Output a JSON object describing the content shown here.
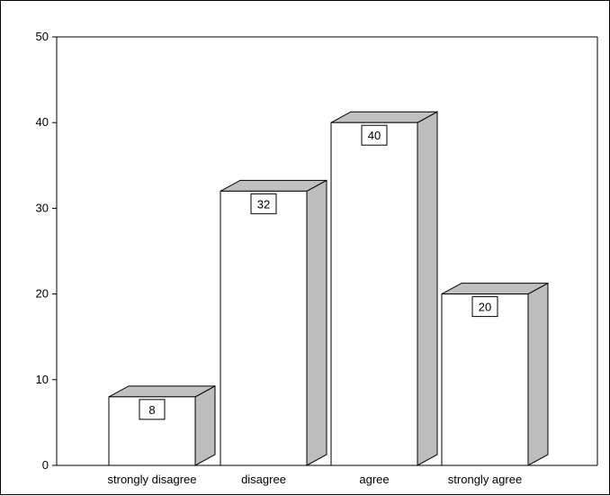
{
  "chart_data": {
    "type": "bar",
    "categories": [
      "strongly disagree",
      "disagree",
      "agree",
      "strongly agree"
    ],
    "values": [
      8,
      32,
      40,
      20
    ],
    "data_labels": [
      "8",
      "32",
      "40",
      "20"
    ],
    "ylim": [
      0,
      50
    ],
    "yticks": [
      0,
      10,
      20,
      30,
      40,
      50
    ],
    "ytick_labels": [
      "0",
      "10",
      "20",
      "30",
      "40",
      "50"
    ],
    "title": "",
    "xlabel": "",
    "ylabel": "",
    "grid": false,
    "legend": "none",
    "style": "3d-bar",
    "colors": {
      "bar_front": "#ffffff",
      "bar_top": "#c0c0c0",
      "bar_side": "#bdbdbd",
      "axis": "#000000",
      "label_box_border": "#000000"
    }
  }
}
